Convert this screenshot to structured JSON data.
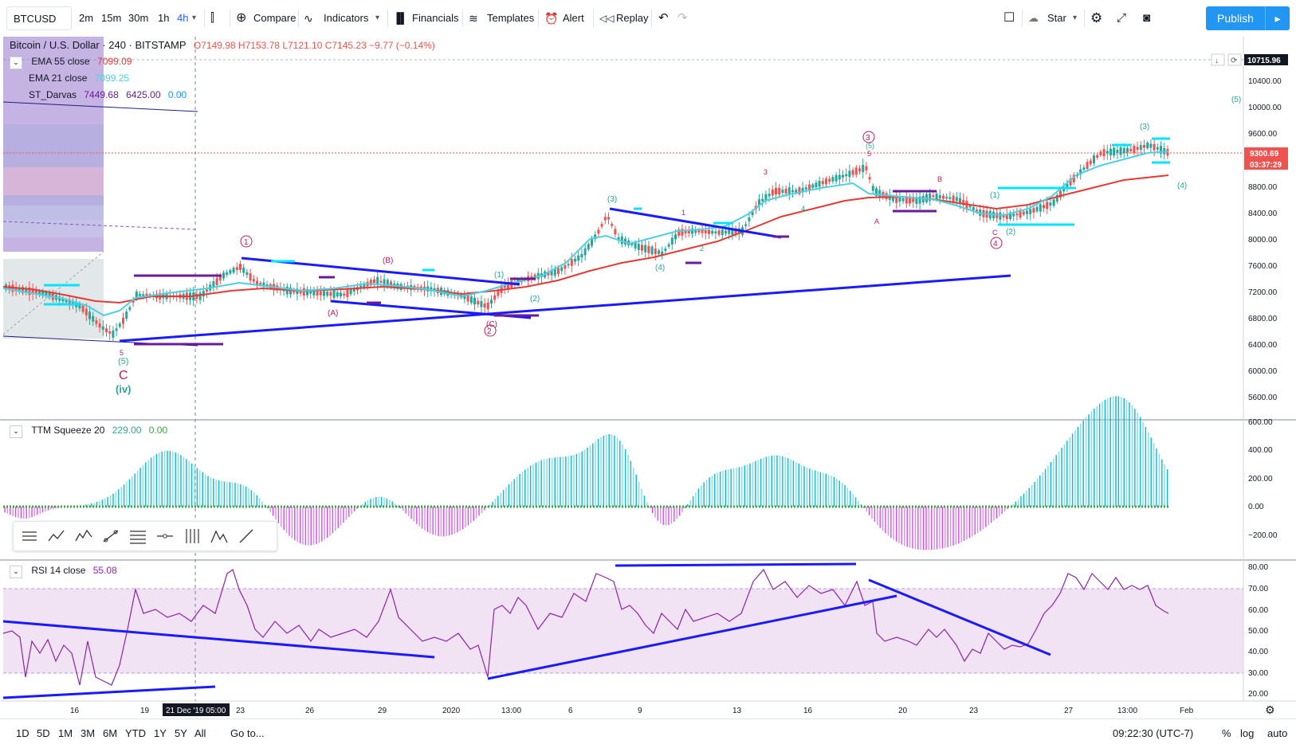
{
  "toolbar": {
    "symbol": "BTCUSD",
    "intervals": [
      "2m",
      "15m",
      "30m",
      "1h",
      "4h"
    ],
    "active_interval": "4h",
    "compare": "Compare",
    "indicators": "Indicators",
    "financials": "Financials",
    "templates": "Templates",
    "alert": "Alert",
    "replay": "Replay",
    "star": "Star",
    "publish": "Publish"
  },
  "legend": {
    "title": "Bitcoin / U.S. Dollar · 240 · BITSTAMP",
    "ohlc": "O7149.98 H7153.78 L7121.10 C7145.23 −9.77 (−0.14%)",
    "ema55_label": "EMA 55 close",
    "ema55_value": "7099.09",
    "ema21_label": "EMA 21 close",
    "ema21_value": "7099.25",
    "darvas_label": "ST_Darvas",
    "darvas_v1": "7449.68",
    "darvas_v2": "6425.00",
    "darvas_v3": "0.00",
    "ttm_label": "TTM Squeeze 20",
    "ttm_v1": "229.00",
    "ttm_v2": "0.00",
    "rsi_label": "RSI 14 close",
    "rsi_value": "55.08"
  },
  "price_axis": {
    "labels": [
      "10400.00",
      "10000.00",
      "9600.00",
      "8800.00",
      "8400.00",
      "8000.00",
      "7600.00",
      "7200.00",
      "6800.00",
      "6400.00",
      "6000.00",
      "5600.00"
    ],
    "top_tag": "10715.96",
    "last_price": "9300.69",
    "countdown": "03:37:29"
  },
  "ttm_axis": [
    "600.00",
    "400.00",
    "200.00",
    "0.00",
    "−200.00"
  ],
  "rsi_axis": [
    "80.00",
    "70.00",
    "60.00",
    "50.00",
    "40.00",
    "30.00",
    "20.00"
  ],
  "time_axis": {
    "labels": [
      "16",
      "19",
      "23",
      "26",
      "29",
      "2020",
      "13:00",
      "6",
      "9",
      "13",
      "16",
      "20",
      "23",
      "27",
      "13:00",
      "Feb"
    ],
    "crosshair": "21 Dec '19   05:00"
  },
  "waves": {
    "c_label": "C",
    "iv_label": "(iv)",
    "five": "5",
    "p5": "(5)",
    "c1": "1",
    "B_paren": "(B)",
    "A_paren": "(A)",
    "C_paren": "(C)",
    "c2": "2",
    "p1": "(1)",
    "p2": "(2)",
    "p3": "(3)",
    "one": "1",
    "two": "2",
    "p4": "(4)",
    "three": "3",
    "four": "4",
    "c3": "3",
    "B": "B",
    "A": "A",
    "C": "C",
    "c4": "4",
    "p3b": "(3)",
    "p4b": "(4)",
    "p5b": "(5)"
  },
  "bottom": {
    "ranges": [
      "1D",
      "5D",
      "1M",
      "3M",
      "6M",
      "YTD",
      "1Y",
      "5Y",
      "All"
    ],
    "goto": "Go to...",
    "clock": "09:22:30 (UTC-7)",
    "percent": "%",
    "log": "log",
    "auto": "auto"
  },
  "colors": {
    "ema55": "#e53935",
    "ema21": "#4dd0e1",
    "trend": "#1a1aff",
    "up": "#26a69a",
    "down": "#ef5350",
    "rsi": "#9c27b0",
    "wave": "#c2185b"
  }
}
